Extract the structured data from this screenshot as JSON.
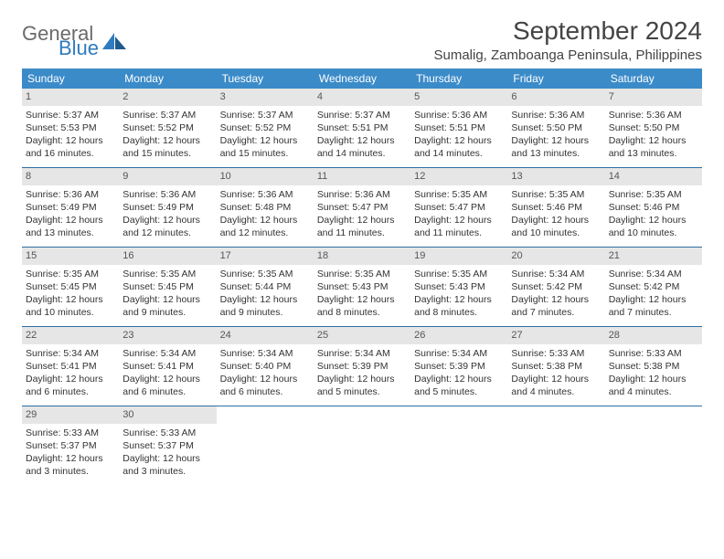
{
  "logo": {
    "general": "General",
    "blue": "Blue"
  },
  "title": "September 2024",
  "location": "Sumalig, Zamboanga Peninsula, Philippines",
  "colors": {
    "header_bg": "#3b8bc9",
    "header_text": "#ffffff",
    "daynum_bg": "#e6e6e6",
    "row_border": "#2f6fa3",
    "body_text": "#333333",
    "logo_gray": "#6a6a6a",
    "logo_blue": "#2f7bbf"
  },
  "dow": [
    "Sunday",
    "Monday",
    "Tuesday",
    "Wednesday",
    "Thursday",
    "Friday",
    "Saturday"
  ],
  "weeks": [
    [
      {
        "n": "1",
        "sr": "5:37 AM",
        "ss": "5:53 PM",
        "dl": "12 hours and 16 minutes."
      },
      {
        "n": "2",
        "sr": "5:37 AM",
        "ss": "5:52 PM",
        "dl": "12 hours and 15 minutes."
      },
      {
        "n": "3",
        "sr": "5:37 AM",
        "ss": "5:52 PM",
        "dl": "12 hours and 15 minutes."
      },
      {
        "n": "4",
        "sr": "5:37 AM",
        "ss": "5:51 PM",
        "dl": "12 hours and 14 minutes."
      },
      {
        "n": "5",
        "sr": "5:36 AM",
        "ss": "5:51 PM",
        "dl": "12 hours and 14 minutes."
      },
      {
        "n": "6",
        "sr": "5:36 AM",
        "ss": "5:50 PM",
        "dl": "12 hours and 13 minutes."
      },
      {
        "n": "7",
        "sr": "5:36 AM",
        "ss": "5:50 PM",
        "dl": "12 hours and 13 minutes."
      }
    ],
    [
      {
        "n": "8",
        "sr": "5:36 AM",
        "ss": "5:49 PM",
        "dl": "12 hours and 13 minutes."
      },
      {
        "n": "9",
        "sr": "5:36 AM",
        "ss": "5:49 PM",
        "dl": "12 hours and 12 minutes."
      },
      {
        "n": "10",
        "sr": "5:36 AM",
        "ss": "5:48 PM",
        "dl": "12 hours and 12 minutes."
      },
      {
        "n": "11",
        "sr": "5:36 AM",
        "ss": "5:47 PM",
        "dl": "12 hours and 11 minutes."
      },
      {
        "n": "12",
        "sr": "5:35 AM",
        "ss": "5:47 PM",
        "dl": "12 hours and 11 minutes."
      },
      {
        "n": "13",
        "sr": "5:35 AM",
        "ss": "5:46 PM",
        "dl": "12 hours and 10 minutes."
      },
      {
        "n": "14",
        "sr": "5:35 AM",
        "ss": "5:46 PM",
        "dl": "12 hours and 10 minutes."
      }
    ],
    [
      {
        "n": "15",
        "sr": "5:35 AM",
        "ss": "5:45 PM",
        "dl": "12 hours and 10 minutes."
      },
      {
        "n": "16",
        "sr": "5:35 AM",
        "ss": "5:45 PM",
        "dl": "12 hours and 9 minutes."
      },
      {
        "n": "17",
        "sr": "5:35 AM",
        "ss": "5:44 PM",
        "dl": "12 hours and 9 minutes."
      },
      {
        "n": "18",
        "sr": "5:35 AM",
        "ss": "5:43 PM",
        "dl": "12 hours and 8 minutes."
      },
      {
        "n": "19",
        "sr": "5:35 AM",
        "ss": "5:43 PM",
        "dl": "12 hours and 8 minutes."
      },
      {
        "n": "20",
        "sr": "5:34 AM",
        "ss": "5:42 PM",
        "dl": "12 hours and 7 minutes."
      },
      {
        "n": "21",
        "sr": "5:34 AM",
        "ss": "5:42 PM",
        "dl": "12 hours and 7 minutes."
      }
    ],
    [
      {
        "n": "22",
        "sr": "5:34 AM",
        "ss": "5:41 PM",
        "dl": "12 hours and 6 minutes."
      },
      {
        "n": "23",
        "sr": "5:34 AM",
        "ss": "5:41 PM",
        "dl": "12 hours and 6 minutes."
      },
      {
        "n": "24",
        "sr": "5:34 AM",
        "ss": "5:40 PM",
        "dl": "12 hours and 6 minutes."
      },
      {
        "n": "25",
        "sr": "5:34 AM",
        "ss": "5:39 PM",
        "dl": "12 hours and 5 minutes."
      },
      {
        "n": "26",
        "sr": "5:34 AM",
        "ss": "5:39 PM",
        "dl": "12 hours and 5 minutes."
      },
      {
        "n": "27",
        "sr": "5:33 AM",
        "ss": "5:38 PM",
        "dl": "12 hours and 4 minutes."
      },
      {
        "n": "28",
        "sr": "5:33 AM",
        "ss": "5:38 PM",
        "dl": "12 hours and 4 minutes."
      }
    ],
    [
      {
        "n": "29",
        "sr": "5:33 AM",
        "ss": "5:37 PM",
        "dl": "12 hours and 3 minutes."
      },
      {
        "n": "30",
        "sr": "5:33 AM",
        "ss": "5:37 PM",
        "dl": "12 hours and 3 minutes."
      },
      {
        "empty": true
      },
      {
        "empty": true
      },
      {
        "empty": true
      },
      {
        "empty": true
      },
      {
        "empty": true
      }
    ]
  ],
  "labels": {
    "sunrise": "Sunrise:",
    "sunset": "Sunset:",
    "daylight": "Daylight:"
  }
}
